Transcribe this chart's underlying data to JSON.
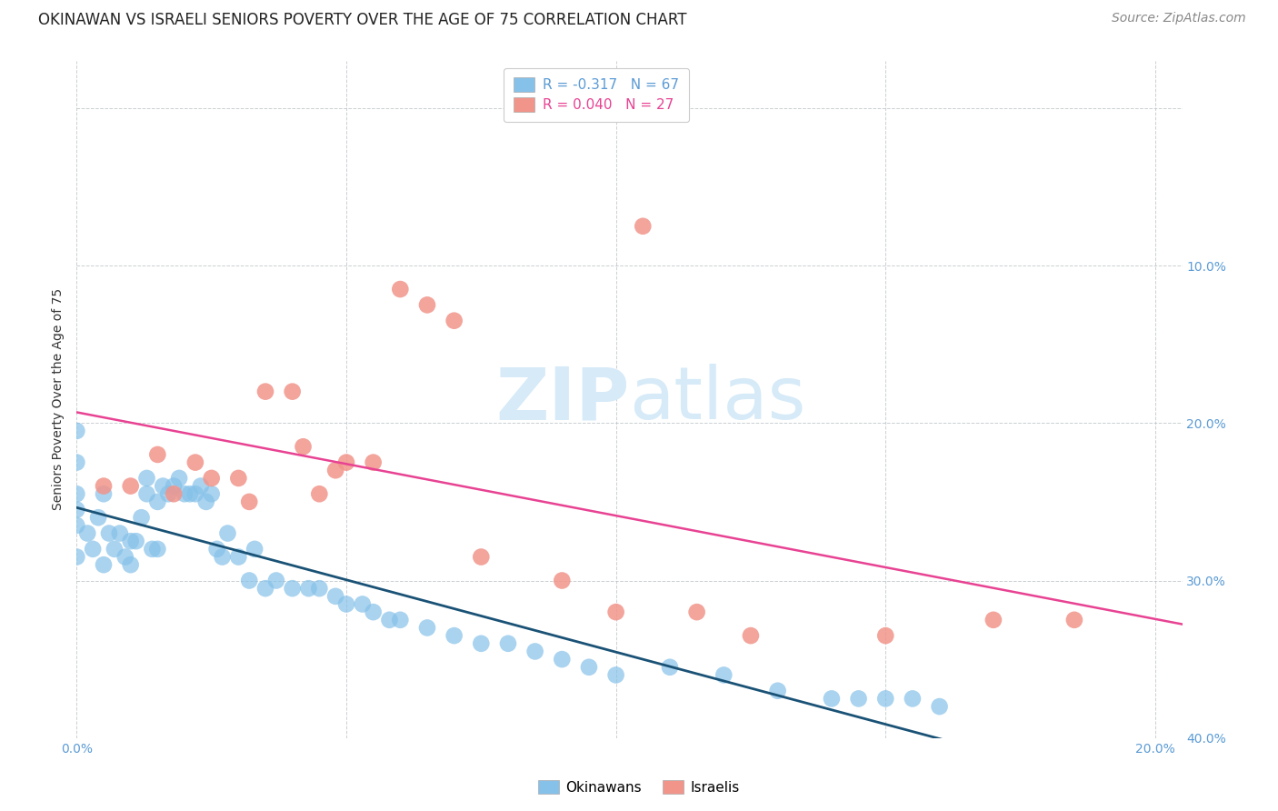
{
  "title": "OKINAWAN VS ISRAELI SENIORS POVERTY OVER THE AGE OF 75 CORRELATION CHART",
  "source": "Source: ZipAtlas.com",
  "ylabel": "Seniors Poverty Over the Age of 75",
  "xlim": [
    0.0,
    0.205
  ],
  "ylim": [
    0.0,
    0.43
  ],
  "xticks": [
    0.0,
    0.05,
    0.1,
    0.15,
    0.2
  ],
  "xtick_labels": [
    "0.0%",
    "",
    "",
    "",
    "20.0%"
  ],
  "yticks": [
    0.0,
    0.1,
    0.2,
    0.3,
    0.4
  ],
  "right_ytick_labels": [
    "40.0%",
    "30.0%",
    "20.0%",
    "10.0%",
    ""
  ],
  "legend_labels_bottom": [
    "Okinawans",
    "Israelis"
  ],
  "okinawan_color": "#85C1E9",
  "israeli_color": "#F1948A",
  "regression_okinawan_color": "#1A5276",
  "regression_israeli_color": "#E84393",
  "watermark_zip": "ZIP",
  "watermark_atlas": "atlas",
  "watermark_color": "#D6EAF8",
  "grid_color": "#BDC3C7",
  "background_color": "#FFFFFF",
  "title_fontsize": 12,
  "axis_label_fontsize": 10,
  "tick_fontsize": 10,
  "source_fontsize": 10,
  "okinawan_points_x": [
    0.0,
    0.0,
    0.0,
    0.0,
    0.0,
    0.0,
    0.002,
    0.003,
    0.004,
    0.005,
    0.005,
    0.006,
    0.007,
    0.008,
    0.009,
    0.01,
    0.01,
    0.011,
    0.012,
    0.013,
    0.013,
    0.014,
    0.015,
    0.015,
    0.016,
    0.017,
    0.018,
    0.019,
    0.02,
    0.021,
    0.022,
    0.023,
    0.024,
    0.025,
    0.026,
    0.027,
    0.028,
    0.03,
    0.032,
    0.033,
    0.035,
    0.037,
    0.04,
    0.043,
    0.045,
    0.048,
    0.05,
    0.053,
    0.055,
    0.058,
    0.06,
    0.065,
    0.07,
    0.075,
    0.08,
    0.085,
    0.09,
    0.095,
    0.1,
    0.11,
    0.12,
    0.13,
    0.14,
    0.145,
    0.15,
    0.155,
    0.16
  ],
  "okinawan_points_y": [
    0.195,
    0.175,
    0.155,
    0.145,
    0.135,
    0.115,
    0.13,
    0.12,
    0.14,
    0.155,
    0.11,
    0.13,
    0.12,
    0.13,
    0.115,
    0.125,
    0.11,
    0.125,
    0.14,
    0.165,
    0.155,
    0.12,
    0.15,
    0.12,
    0.16,
    0.155,
    0.16,
    0.165,
    0.155,
    0.155,
    0.155,
    0.16,
    0.15,
    0.155,
    0.12,
    0.115,
    0.13,
    0.115,
    0.1,
    0.12,
    0.095,
    0.1,
    0.095,
    0.095,
    0.095,
    0.09,
    0.085,
    0.085,
    0.08,
    0.075,
    0.075,
    0.07,
    0.065,
    0.06,
    0.06,
    0.055,
    0.05,
    0.045,
    0.04,
    0.045,
    0.04,
    0.03,
    0.025,
    0.025,
    0.025,
    0.025,
    0.02
  ],
  "israeli_points_x": [
    0.005,
    0.01,
    0.015,
    0.018,
    0.022,
    0.025,
    0.03,
    0.032,
    0.035,
    0.04,
    0.042,
    0.045,
    0.048,
    0.05,
    0.055,
    0.06,
    0.065,
    0.07,
    0.075,
    0.09,
    0.1,
    0.105,
    0.115,
    0.125,
    0.15,
    0.17,
    0.185
  ],
  "israeli_points_y": [
    0.16,
    0.16,
    0.18,
    0.155,
    0.175,
    0.165,
    0.165,
    0.15,
    0.22,
    0.22,
    0.185,
    0.155,
    0.17,
    0.175,
    0.175,
    0.285,
    0.275,
    0.265,
    0.115,
    0.1,
    0.08,
    0.325,
    0.08,
    0.065,
    0.065,
    0.075,
    0.075
  ]
}
